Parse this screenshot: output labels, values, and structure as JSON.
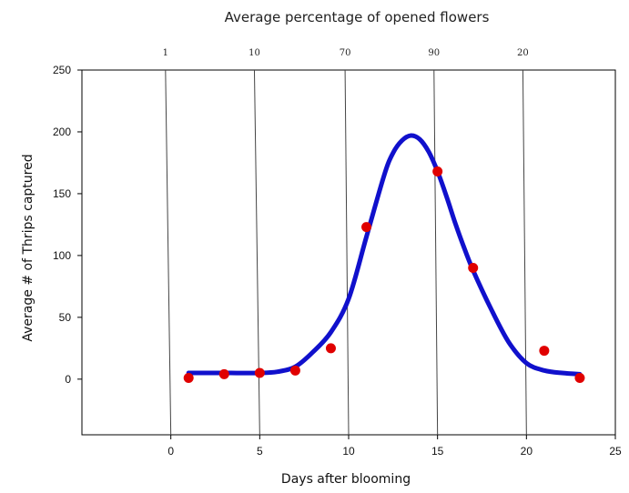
{
  "chart_data": {
    "type": "scatter",
    "title": "Average percentage of opened flowers",
    "xlabel": "Days after blooming",
    "ylabel": "Average # of Thrips captured",
    "xlim": [
      -5,
      25
    ],
    "ylim": [
      -45,
      250
    ],
    "x_ticks": [
      0,
      5,
      10,
      15,
      20,
      25
    ],
    "y_ticks": [
      0,
      50,
      100,
      150,
      200,
      250
    ],
    "grid": false,
    "legend": "none",
    "top_axis": {
      "label": "Average percentage of opened flowers",
      "reference_lines": [
        {
          "label": "1",
          "x_top": -0.3,
          "x_bottom": 0
        },
        {
          "label": "10",
          "x_top": 4.7,
          "x_bottom": 5
        },
        {
          "label": "70",
          "x_top": 9.8,
          "x_bottom": 10
        },
        {
          "label": "90",
          "x_top": 14.8,
          "x_bottom": 15
        },
        {
          "label": "20",
          "x_top": 19.8,
          "x_bottom": 20
        }
      ]
    },
    "series": [
      {
        "type": "scatter",
        "color": "#e00000",
        "x": [
          1,
          3,
          5,
          7,
          9,
          11,
          15,
          17,
          21,
          23
        ],
        "y": [
          1,
          4,
          5,
          7,
          25,
          123,
          168,
          90,
          23,
          1
        ]
      },
      {
        "type": "line",
        "color": "#1010cc",
        "x": [
          1,
          3,
          5,
          6,
          7,
          8,
          9,
          10,
          11,
          12,
          12.5,
          13,
          13.5,
          14,
          14.5,
          15,
          15.5,
          16,
          16.5,
          17,
          18,
          19,
          20,
          21,
          22,
          23
        ],
        "y": [
          5,
          5,
          5,
          6,
          10,
          22,
          38,
          65,
          115,
          165,
          183,
          193,
          197,
          194,
          184,
          168,
          148,
          126,
          106,
          88,
          57,
          30,
          13,
          7,
          5,
          4
        ]
      }
    ]
  }
}
